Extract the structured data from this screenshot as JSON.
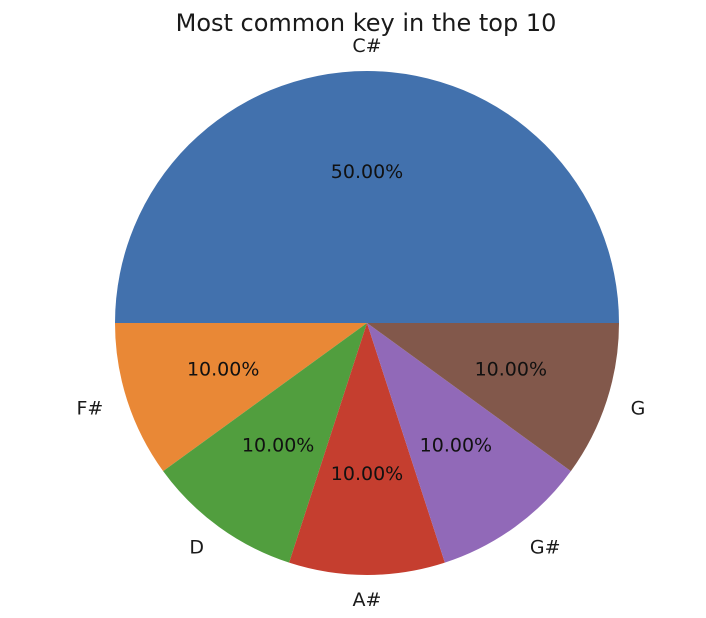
{
  "chart_data": {
    "type": "pie",
    "title": "Most common key in the top 10",
    "categories": [
      "C#",
      "F#",
      "D",
      "A#",
      "G#",
      "G"
    ],
    "values": [
      50,
      10,
      10,
      10,
      10,
      10
    ],
    "percent_labels": [
      "50.00%",
      "10.00%",
      "10.00%",
      "10.00%",
      "10.00%",
      "10.00%"
    ],
    "colors": [
      "#4271ad",
      "#e98836",
      "#519e3e",
      "#c53e2f",
      "#9169b8",
      "#82584b"
    ],
    "start_angle_deg": 0,
    "direction": "counterclockwise"
  }
}
